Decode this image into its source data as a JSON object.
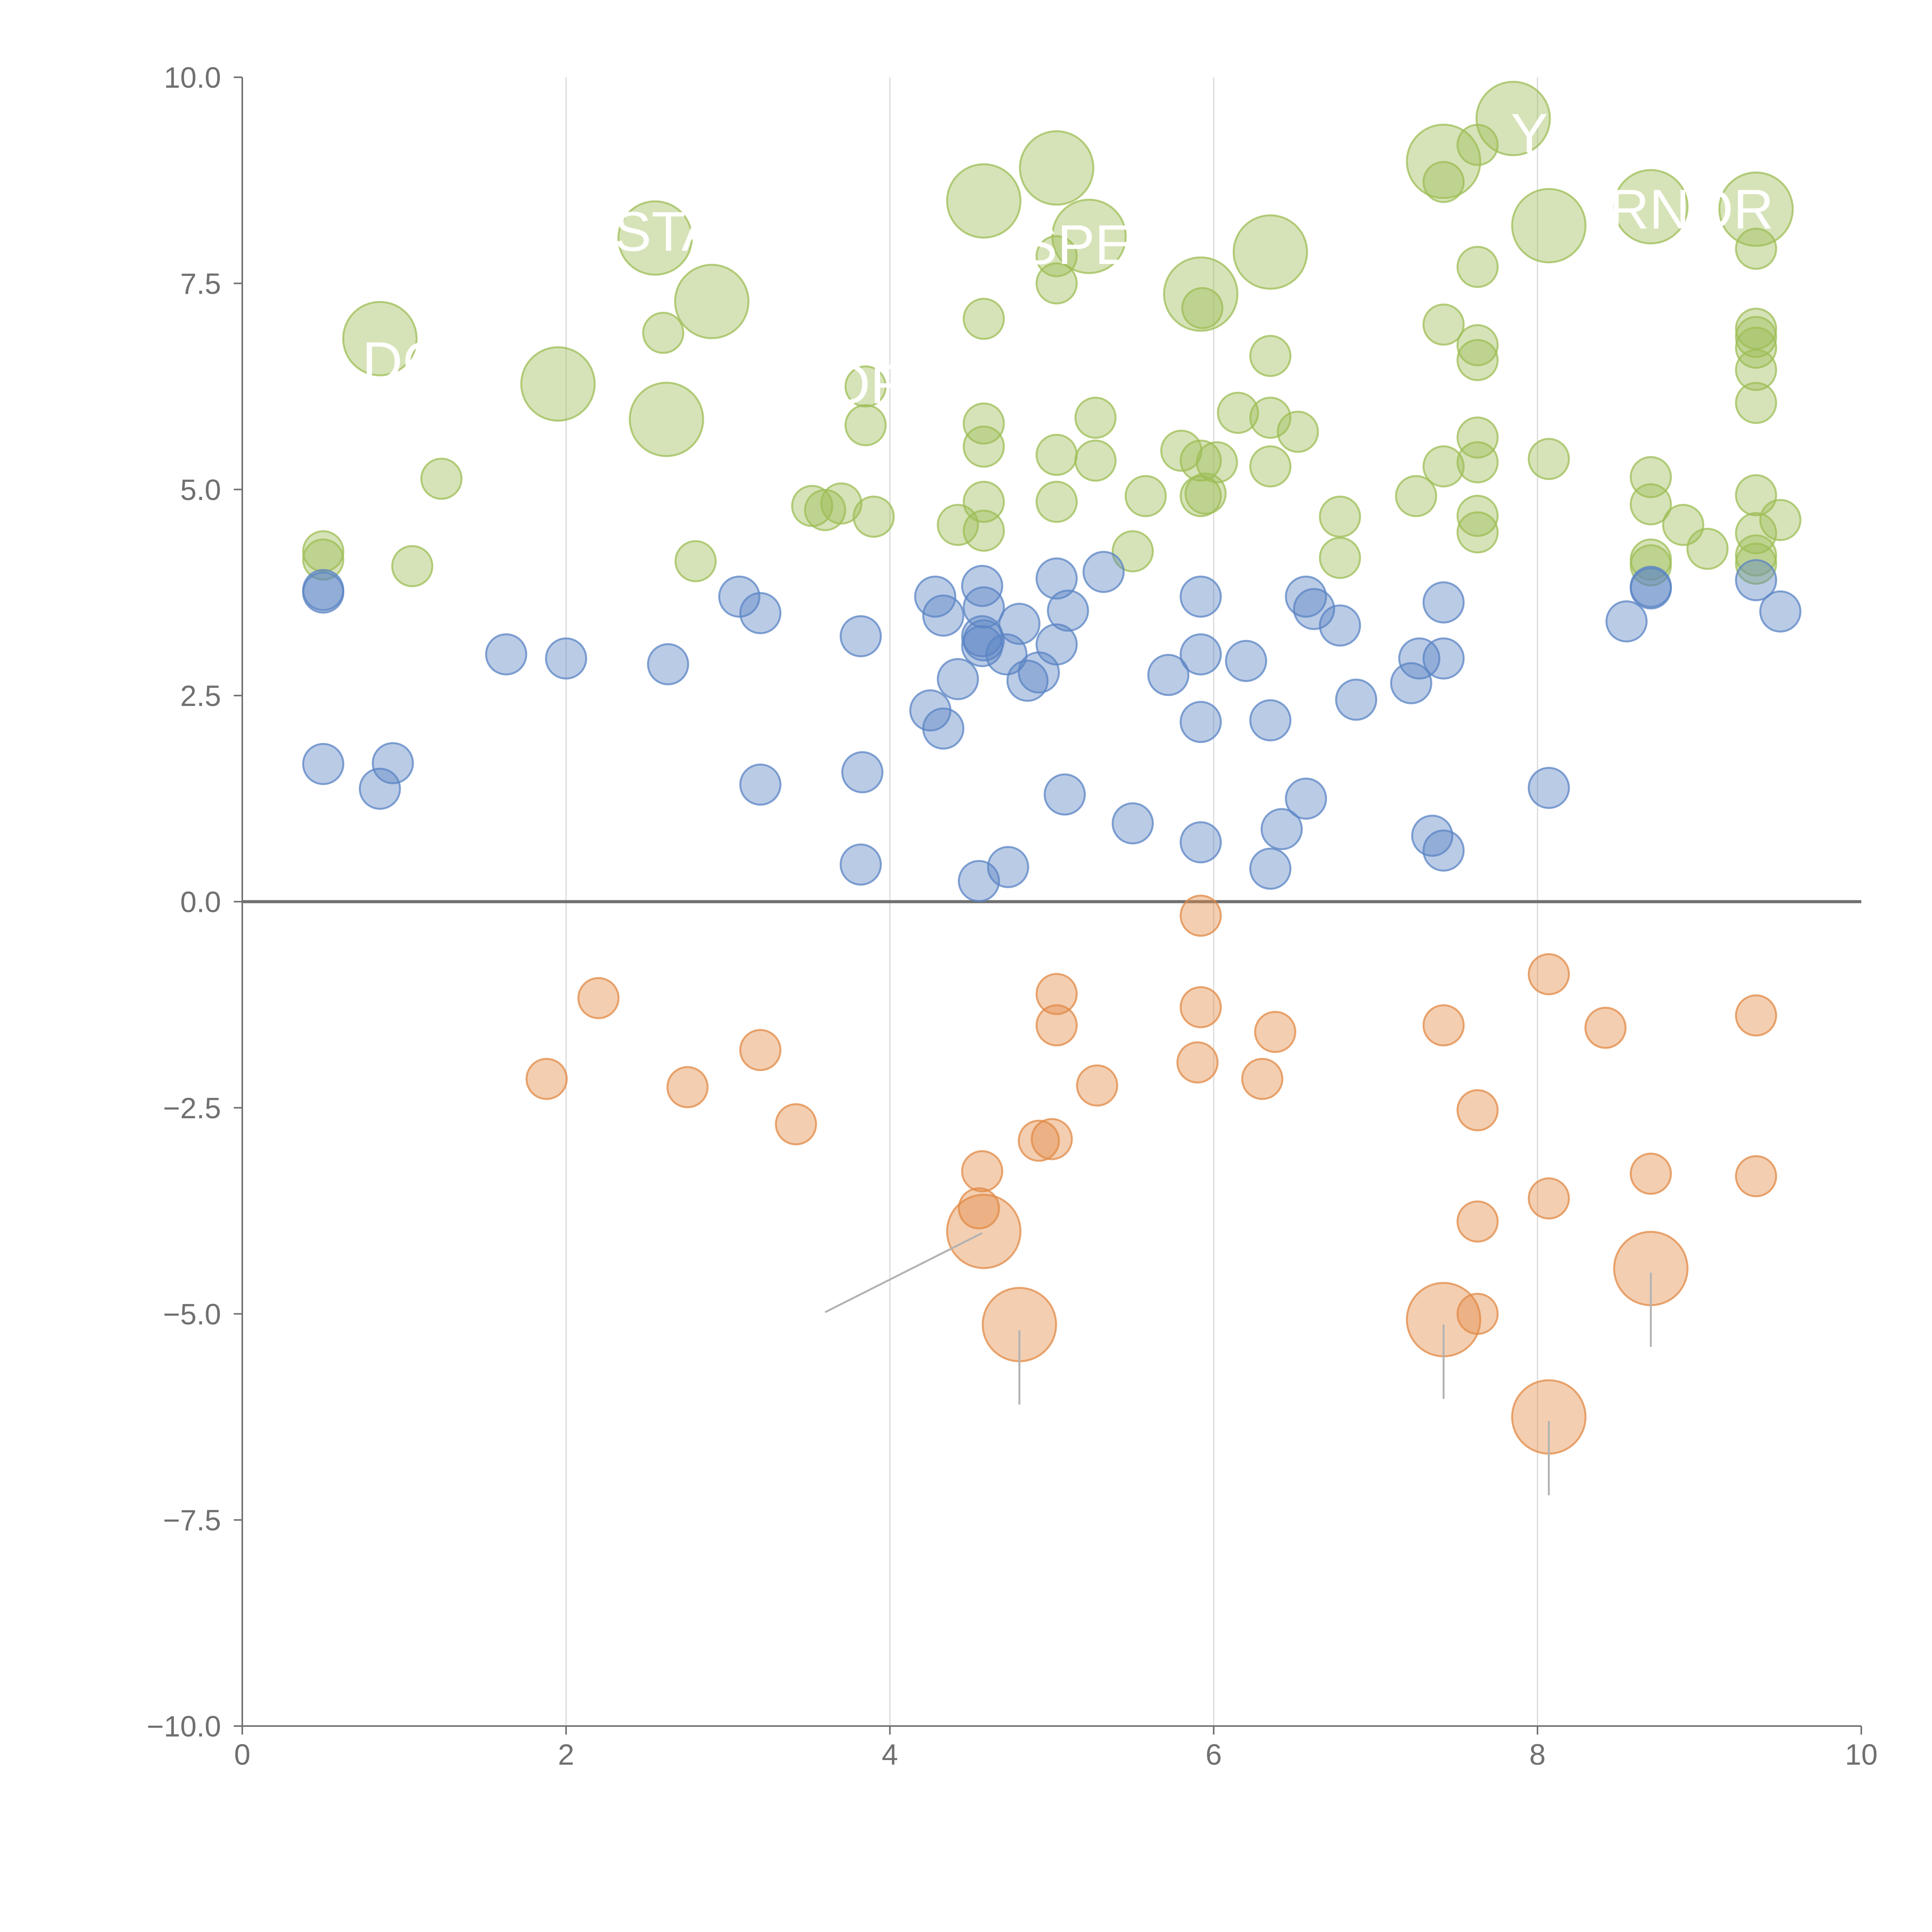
{
  "chart_data": {
    "type": "scatter",
    "title": "",
    "xlabel": "",
    "ylabel": "",
    "xlim": [
      0,
      10
    ],
    "ylim": [
      -10,
      10
    ],
    "x_ticks": [
      "0",
      "2",
      "4",
      "6",
      "8",
      "10"
    ],
    "y_ticks": [
      "10.0",
      "7.5",
      "5.0",
      "2.5",
      "0.0",
      "−2.5",
      "−5.0",
      "−7.5",
      "−10.0"
    ],
    "grid": "vertical",
    "baseline": 0,
    "colors": {
      "green": "#9ebd56",
      "blue": "#5a84c4",
      "orange": "#e28a45",
      "axis": "#707070",
      "grid": "#d9d9d9",
      "leader": "#b3b3b3"
    },
    "series": [
      {
        "name": "green",
        "color": "#9ebd56",
        "points": [
          [
            0.5,
            4.25
          ],
          [
            0.5,
            4.15
          ],
          [
            1.05,
            4.07
          ],
          [
            1.23,
            5.13
          ],
          [
            2.6,
            6.9
          ],
          [
            2.8,
            4.13
          ],
          [
            3.52,
            4.8
          ],
          [
            3.6,
            4.75
          ],
          [
            3.7,
            4.83
          ],
          [
            3.85,
            5.78
          ],
          [
            3.85,
            6.25
          ],
          [
            3.9,
            4.67
          ],
          [
            4.42,
            4.57
          ],
          [
            4.58,
            7.07
          ],
          [
            4.58,
            5.8
          ],
          [
            4.58,
            5.52
          ],
          [
            4.58,
            4.85
          ],
          [
            4.58,
            4.5
          ],
          [
            5.03,
            7.5
          ],
          [
            5.03,
            7.83
          ],
          [
            5.03,
            5.42
          ],
          [
            5.03,
            4.85
          ],
          [
            5.27,
            5.87
          ],
          [
            5.27,
            5.35
          ],
          [
            5.5,
            4.25
          ],
          [
            5.58,
            4.92
          ],
          [
            5.8,
            5.47
          ],
          [
            5.92,
            5.35
          ],
          [
            5.92,
            4.92
          ],
          [
            5.95,
            4.95
          ],
          [
            5.93,
            7.2
          ],
          [
            6.02,
            5.33
          ],
          [
            6.15,
            5.93
          ],
          [
            6.35,
            6.62
          ],
          [
            6.35,
            5.87
          ],
          [
            6.35,
            5.28
          ],
          [
            6.52,
            5.7
          ],
          [
            6.78,
            4.67
          ],
          [
            6.78,
            4.17
          ],
          [
            7.25,
            4.92
          ],
          [
            7.42,
            8.73
          ],
          [
            7.42,
            7.0
          ],
          [
            7.42,
            5.28
          ],
          [
            7.63,
            9.18
          ],
          [
            7.63,
            7.7
          ],
          [
            7.63,
            6.75
          ],
          [
            7.63,
            6.57
          ],
          [
            7.63,
            5.63
          ],
          [
            7.63,
            5.33
          ],
          [
            7.63,
            4.68
          ],
          [
            7.63,
            4.48
          ],
          [
            8.07,
            5.37
          ],
          [
            8.7,
            5.15
          ],
          [
            8.7,
            4.82
          ],
          [
            8.7,
            4.15
          ],
          [
            8.7,
            4.08
          ],
          [
            8.9,
            4.57
          ],
          [
            9.05,
            4.28
          ],
          [
            9.35,
            7.92
          ],
          [
            9.35,
            6.95
          ],
          [
            9.35,
            6.85
          ],
          [
            9.35,
            6.72
          ],
          [
            9.35,
            6.45
          ],
          [
            9.35,
            6.05
          ],
          [
            9.35,
            4.93
          ],
          [
            9.35,
            4.47
          ],
          [
            9.35,
            4.2
          ],
          [
            9.35,
            4.1
          ],
          [
            9.5,
            4.63
          ]
        ],
        "large_points": [
          [
            0.85,
            6.83
          ],
          [
            1.95,
            6.28
          ],
          [
            2.55,
            8.05
          ],
          [
            2.62,
            5.85
          ],
          [
            2.9,
            7.28
          ],
          [
            4.58,
            8.5
          ],
          [
            5.03,
            8.9
          ],
          [
            5.23,
            8.07
          ],
          [
            5.92,
            7.37
          ],
          [
            6.35,
            7.88
          ],
          [
            7.42,
            8.98
          ],
          [
            7.85,
            9.5
          ],
          [
            8.07,
            8.2
          ],
          [
            8.7,
            8.43
          ],
          [
            9.35,
            8.4
          ]
        ]
      },
      {
        "name": "blue",
        "color": "#5a84c4",
        "points": [
          [
            0.5,
            3.78
          ],
          [
            0.5,
            3.75
          ],
          [
            0.5,
            1.67
          ],
          [
            0.85,
            1.37
          ],
          [
            0.93,
            1.68
          ],
          [
            1.63,
            3.0
          ],
          [
            2.0,
            2.95
          ],
          [
            2.63,
            2.88
          ],
          [
            3.07,
            3.7
          ],
          [
            3.2,
            3.5
          ],
          [
            3.2,
            1.42
          ],
          [
            3.82,
            3.22
          ],
          [
            3.83,
            1.57
          ],
          [
            3.82,
            0.45
          ],
          [
            4.25,
            2.32
          ],
          [
            4.28,
            3.7
          ],
          [
            4.33,
            3.47
          ],
          [
            4.33,
            2.1
          ],
          [
            4.42,
            2.7
          ],
          [
            4.57,
            3.83
          ],
          [
            4.58,
            3.57
          ],
          [
            4.57,
            3.22
          ],
          [
            4.58,
            3.17
          ],
          [
            4.57,
            3.1
          ],
          [
            4.55,
            0.25
          ],
          [
            4.72,
            3.0
          ],
          [
            4.73,
            0.42
          ],
          [
            4.8,
            3.37
          ],
          [
            4.85,
            2.68
          ],
          [
            4.92,
            2.78
          ],
          [
            5.03,
            3.92
          ],
          [
            5.03,
            3.12
          ],
          [
            5.1,
            3.53
          ],
          [
            5.08,
            1.3
          ],
          [
            5.32,
            4.0
          ],
          [
            5.5,
            0.95
          ],
          [
            5.72,
            2.75
          ],
          [
            5.92,
            3.7
          ],
          [
            5.92,
            3.0
          ],
          [
            5.92,
            2.18
          ],
          [
            5.92,
            0.72
          ],
          [
            6.2,
            2.92
          ],
          [
            6.35,
            2.2
          ],
          [
            6.35,
            0.4
          ],
          [
            6.42,
            0.88
          ],
          [
            6.57,
            3.7
          ],
          [
            6.62,
            3.55
          ],
          [
            6.57,
            1.25
          ],
          [
            6.78,
            3.35
          ],
          [
            6.88,
            2.45
          ],
          [
            7.22,
            2.65
          ],
          [
            7.27,
            2.95
          ],
          [
            7.35,
            0.8
          ],
          [
            7.42,
            3.63
          ],
          [
            7.42,
            2.95
          ],
          [
            7.42,
            0.62
          ],
          [
            8.07,
            1.38
          ],
          [
            8.55,
            3.4
          ],
          [
            8.7,
            3.82
          ],
          [
            8.7,
            3.8
          ],
          [
            9.35,
            3.9
          ],
          [
            9.5,
            3.52
          ]
        ],
        "large_points": []
      },
      {
        "name": "orange",
        "color": "#e28a45",
        "points": [
          [
            1.88,
            -2.15
          ],
          [
            2.2,
            -1.17
          ],
          [
            2.75,
            -2.25
          ],
          [
            3.2,
            -1.8
          ],
          [
            3.42,
            -2.7
          ],
          [
            4.57,
            -3.27
          ],
          [
            4.55,
            -3.72
          ],
          [
            4.92,
            -2.9
          ],
          [
            5.0,
            -2.88
          ],
          [
            5.03,
            -1.12
          ],
          [
            5.03,
            -1.5
          ],
          [
            5.28,
            -2.23
          ],
          [
            5.92,
            -0.17
          ],
          [
            5.92,
            -1.28
          ],
          [
            5.9,
            -1.95
          ],
          [
            6.3,
            -2.15
          ],
          [
            6.38,
            -1.58
          ],
          [
            7.42,
            -1.5
          ],
          [
            7.63,
            -2.53
          ],
          [
            7.63,
            -3.88
          ],
          [
            7.63,
            -5.0
          ],
          [
            8.07,
            -0.88
          ],
          [
            8.07,
            -3.6
          ],
          [
            8.42,
            -1.53
          ],
          [
            8.7,
            -3.3
          ],
          [
            9.35,
            -1.38
          ],
          [
            9.35,
            -3.33
          ]
        ],
        "large_points": [
          [
            4.58,
            -4.0
          ],
          [
            4.8,
            -5.13
          ],
          [
            7.42,
            -5.07
          ],
          [
            8.07,
            -6.25
          ],
          [
            8.7,
            -4.45
          ]
        ]
      }
    ],
    "annotation_leaders": [
      [
        [
          4.57,
          -4.02
        ],
        [
          3.6,
          -4.98
        ]
      ],
      [
        [
          4.8,
          -5.2
        ],
        [
          4.8,
          -6.1
        ]
      ],
      [
        [
          7.42,
          -5.13
        ],
        [
          7.42,
          -6.03
        ]
      ],
      [
        [
          8.07,
          -6.3
        ],
        [
          8.07,
          -7.2
        ]
      ],
      [
        [
          8.7,
          -4.5
        ],
        [
          8.7,
          -5.4
        ]
      ]
    ],
    "point_labels": [
      {
        "text": "DO",
        "x": 1.0,
        "y": 6.55
      },
      {
        "text": "STA",
        "x": 2.62,
        "y": 8.13
      },
      {
        "text": "OF",
        "x": 3.85,
        "y": 6.28
      },
      {
        "text": "SPE",
        "x": 5.15,
        "y": 7.97
      },
      {
        "text": "Y",
        "x": 7.95,
        "y": 9.32
      },
      {
        "text": "RNOR",
        "x": 8.95,
        "y": 8.4
      }
    ]
  }
}
